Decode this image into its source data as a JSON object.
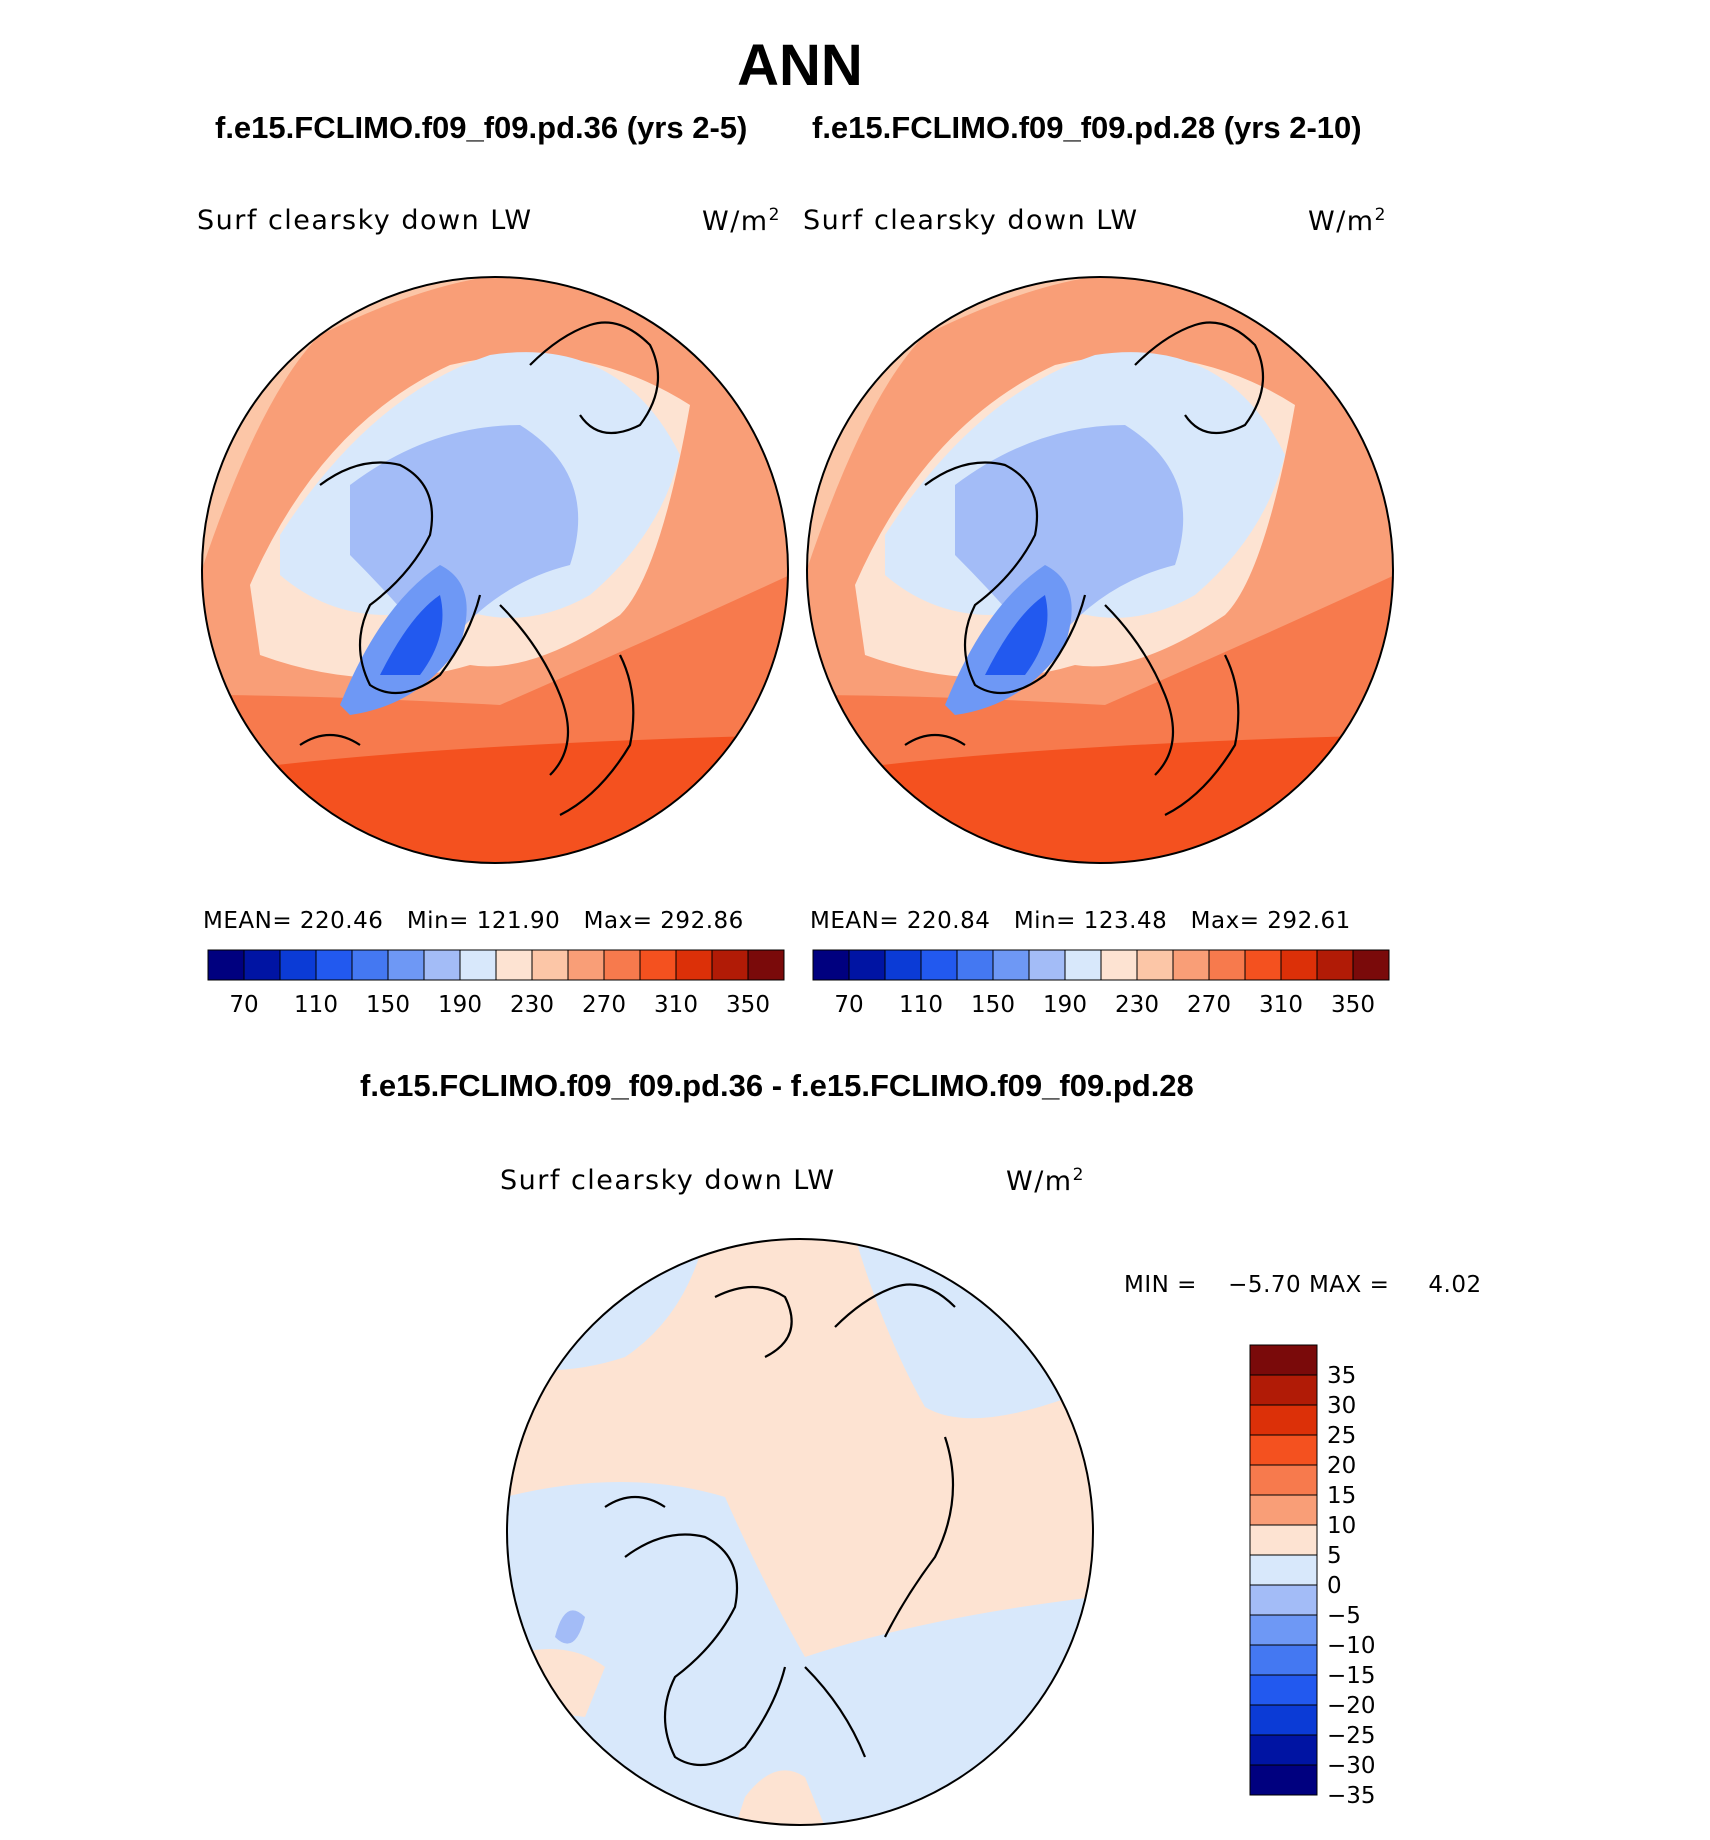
{
  "header": {
    "season": "ANN",
    "case1_title": "f.e15.FCLIMO.f09_f09.pd.36 (yrs 2-5)",
    "case2_title": "f.e15.FCLIMO.f09_f09.pd.28 (yrs 2-10)",
    "diff_title": "f.e15.FCLIMO.f09_f09.pd.36 - f.e15.FCLIMO.f09_f09.pd.28"
  },
  "panels": [
    {
      "variable": "Surf clearsky down LW",
      "units": "W/m",
      "units_exp": "2",
      "mean_label": "MEAN=",
      "mean": "220.46",
      "min_label": "Min=",
      "min": "121.90",
      "max_label": "Max=",
      "max": "292.86"
    },
    {
      "variable": "Surf clearsky down LW",
      "units": "W/m",
      "units_exp": "2",
      "mean_label": "MEAN=",
      "mean": "220.84",
      "min_label": "Min=",
      "min": "123.48",
      "max_label": "Max=",
      "max": "292.61"
    }
  ],
  "diff_panel": {
    "variable": "Surf clearsky down LW",
    "units": "W/m",
    "units_exp": "2",
    "stats_text": "MIN =    −5.70 MAX =     4.02"
  },
  "chart_data": [
    {
      "type": "heatmap",
      "title": "f.e15.FCLIMO.f09_f09.pd.36 (yrs 2-5)",
      "subtitle": "Surf clearsky down LW",
      "units": "W/m2",
      "projection": "north polar stereographic",
      "stats": {
        "mean": 220.46,
        "min": 121.9,
        "max": 292.86
      },
      "colorbar": {
        "ticks": [
          "70",
          "110",
          "150",
          "190",
          "230",
          "270",
          "310",
          "350"
        ],
        "colors": [
          "#00007f",
          "#0014a3",
          "#0b3bd6",
          "#2259ef",
          "#4478f2",
          "#6e98f5",
          "#a3bcf7",
          "#d8e8fb",
          "#fde3d2",
          "#fcc6a7",
          "#f99e77",
          "#f77a4d",
          "#f4511f",
          "#dc3008",
          "#b11b06",
          "#7a0a0a"
        ]
      }
    },
    {
      "type": "heatmap",
      "title": "f.e15.FCLIMO.f09_f09.pd.28 (yrs 2-10)",
      "subtitle": "Surf clearsky down LW",
      "units": "W/m2",
      "projection": "north polar stereographic",
      "stats": {
        "mean": 220.84,
        "min": 123.48,
        "max": 292.61
      },
      "colorbar": {
        "ticks": [
          "70",
          "110",
          "150",
          "190",
          "230",
          "270",
          "310",
          "350"
        ],
        "colors": [
          "#00007f",
          "#0014a3",
          "#0b3bd6",
          "#2259ef",
          "#4478f2",
          "#6e98f5",
          "#a3bcf7",
          "#d8e8fb",
          "#fde3d2",
          "#fcc6a7",
          "#f99e77",
          "#f77a4d",
          "#f4511f",
          "#dc3008",
          "#b11b06",
          "#7a0a0a"
        ]
      }
    },
    {
      "type": "heatmap",
      "title": "f.e15.FCLIMO.f09_f09.pd.36 - f.e15.FCLIMO.f09_f09.pd.28",
      "subtitle": "Surf clearsky down LW",
      "units": "W/m2",
      "projection": "north polar stereographic",
      "stats": {
        "min": -5.7,
        "max": 4.02
      },
      "colorbar": {
        "orientation": "vertical",
        "ticks": [
          "35",
          "30",
          "25",
          "20",
          "15",
          "10",
          "5",
          "0",
          "−5",
          "−10",
          "−15",
          "−20",
          "−25",
          "−30",
          "−35"
        ],
        "colors": [
          "#7a0a0a",
          "#b11b06",
          "#dc3008",
          "#f4511f",
          "#f77a4d",
          "#f99e77",
          "#fde3d2",
          "#d8e8fb",
          "#a3bcf7",
          "#6e98f5",
          "#4478f2",
          "#2259ef",
          "#0b3bd6",
          "#0014a3",
          "#00007f"
        ]
      }
    }
  ]
}
